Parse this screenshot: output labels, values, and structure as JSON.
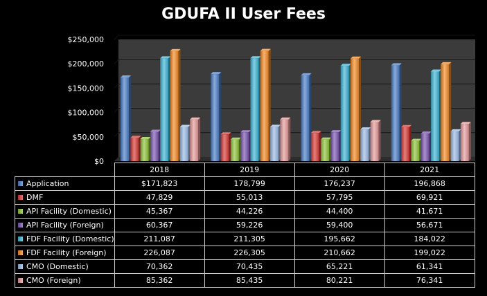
{
  "colors": {
    "background": "#000000",
    "plot_area": "#3b3b3b",
    "grid": "#151515",
    "series": [
      "#4a7ec8",
      "#d83a36",
      "#8fc33a",
      "#7b55b0",
      "#3fb5d6",
      "#f48a24",
      "#9bbbe6",
      "#e5999a"
    ]
  },
  "chart_data": {
    "type": "bar",
    "title": "GDUFA II User Fees",
    "categories": [
      "2018",
      "2019",
      "2020",
      "2021"
    ],
    "ylim": [
      0,
      250000
    ],
    "yticks": [
      "$0",
      "$50,000",
      "$100,000",
      "$150,000",
      "$200,000",
      "$250,000"
    ],
    "grid": true,
    "legend": "table",
    "series": [
      {
        "name": "Application",
        "values": [
          171823,
          178799,
          176237,
          196868
        ],
        "labels": [
          "$171,823",
          "178,799",
          "176,237",
          "196,868"
        ]
      },
      {
        "name": "DMF",
        "values": [
          47829,
          55013,
          57795,
          69921
        ],
        "labels": [
          "47,829",
          "55,013",
          "57,795",
          "69,921"
        ]
      },
      {
        "name": "API Facility (Domestic)",
        "values": [
          45367,
          44226,
          44400,
          41671
        ],
        "labels": [
          "45,367",
          "44,226",
          "44,400",
          "41,671"
        ]
      },
      {
        "name": "API Facility (Foreign)",
        "values": [
          60367,
          59226,
          59400,
          56671
        ],
        "labels": [
          "60,367",
          "59,226",
          "59,400",
          "56,671"
        ]
      },
      {
        "name": "FDF Facility (Domestic)",
        "values": [
          211087,
          211305,
          195662,
          184022
        ],
        "labels": [
          "211,087",
          "211,305",
          "195,662",
          "184,022"
        ]
      },
      {
        "name": "FDF Facility (Foreign)",
        "values": [
          226087,
          226305,
          210662,
          199022
        ],
        "labels": [
          "226,087",
          "226,305",
          "210,662",
          "199,022"
        ]
      },
      {
        "name": "CMO (Domestic)",
        "values": [
          70362,
          70435,
          65221,
          61341
        ],
        "labels": [
          "70,362",
          "70,435",
          "65,221",
          "61,341"
        ]
      },
      {
        "name": "CMO (Foreign)",
        "values": [
          85362,
          85435,
          80221,
          76341
        ],
        "labels": [
          "85,362",
          "85,435",
          "80,221",
          "76,341"
        ]
      }
    ]
  }
}
